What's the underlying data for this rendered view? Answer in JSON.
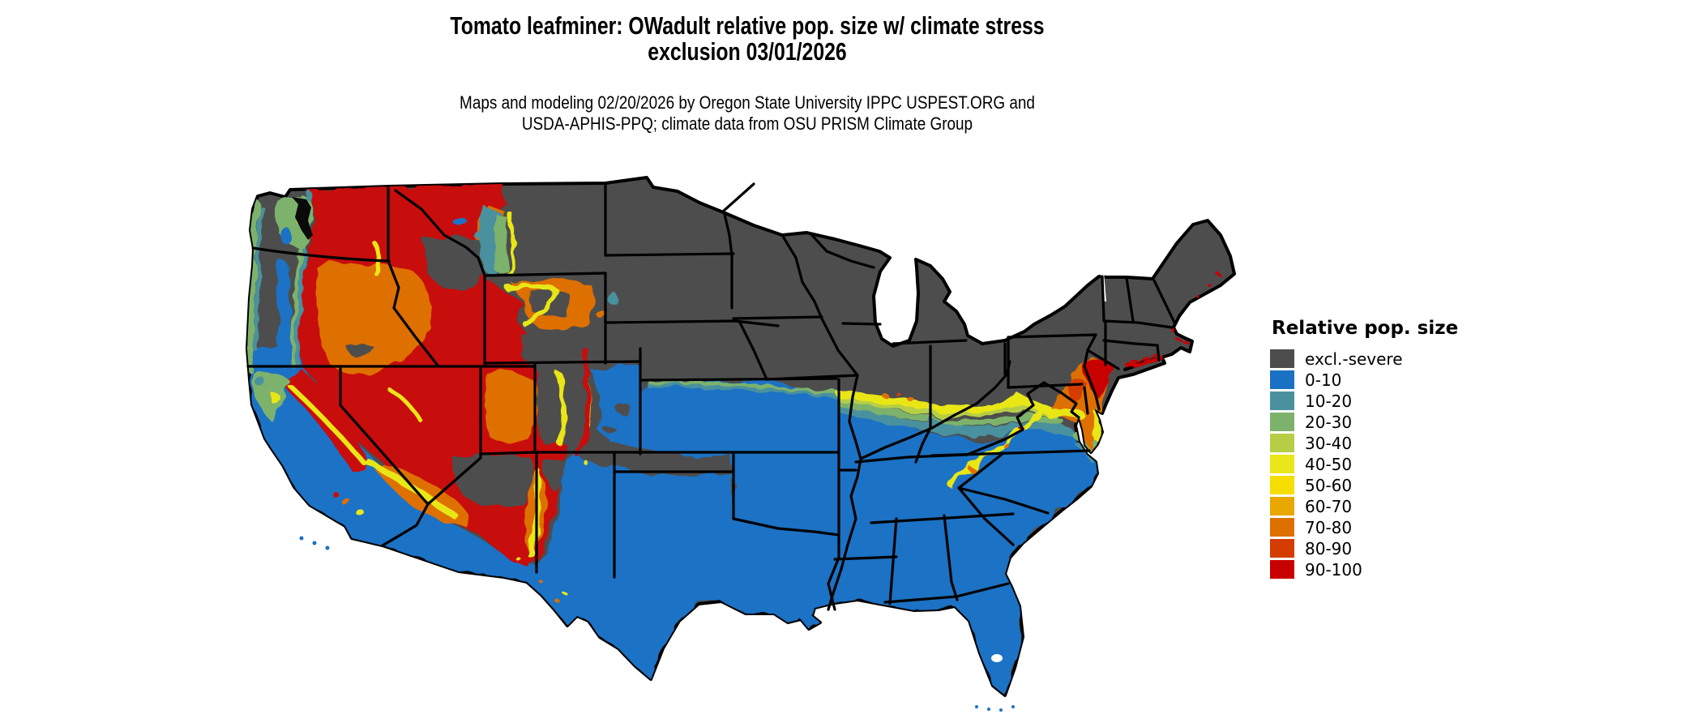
{
  "header": {
    "title_line1": "Tomato leafminer: OWadult relative pop. size w/ climate stress",
    "title_line2": "exclusion 03/01/2026",
    "subtitle_line1": "Maps and modeling 02/20/2026 by Oregon State University IPPC USPEST.ORG and",
    "subtitle_line2": "USDA-APHIS-PPQ; climate data from OSU PRISM Climate Group"
  },
  "legend": {
    "title": "Relative pop. size",
    "items": [
      {
        "label": "excl.-severe",
        "color": "#4d4d4d"
      },
      {
        "label": "0-10",
        "color": "#1b72c4"
      },
      {
        "label": "10-20",
        "color": "#4a919e"
      },
      {
        "label": "20-30",
        "color": "#7db26d"
      },
      {
        "label": "30-40",
        "color": "#b6ce45"
      },
      {
        "label": "40-50",
        "color": "#e9e619"
      },
      {
        "label": "50-60",
        "color": "#f5de00"
      },
      {
        "label": "60-70",
        "color": "#e9a800"
      },
      {
        "label": "70-80",
        "color": "#de7000"
      },
      {
        "label": "80-90",
        "color": "#d53c00"
      },
      {
        "label": "90-100",
        "color": "#c90000"
      }
    ]
  },
  "map": {
    "region_label": "Continental United States"
  }
}
